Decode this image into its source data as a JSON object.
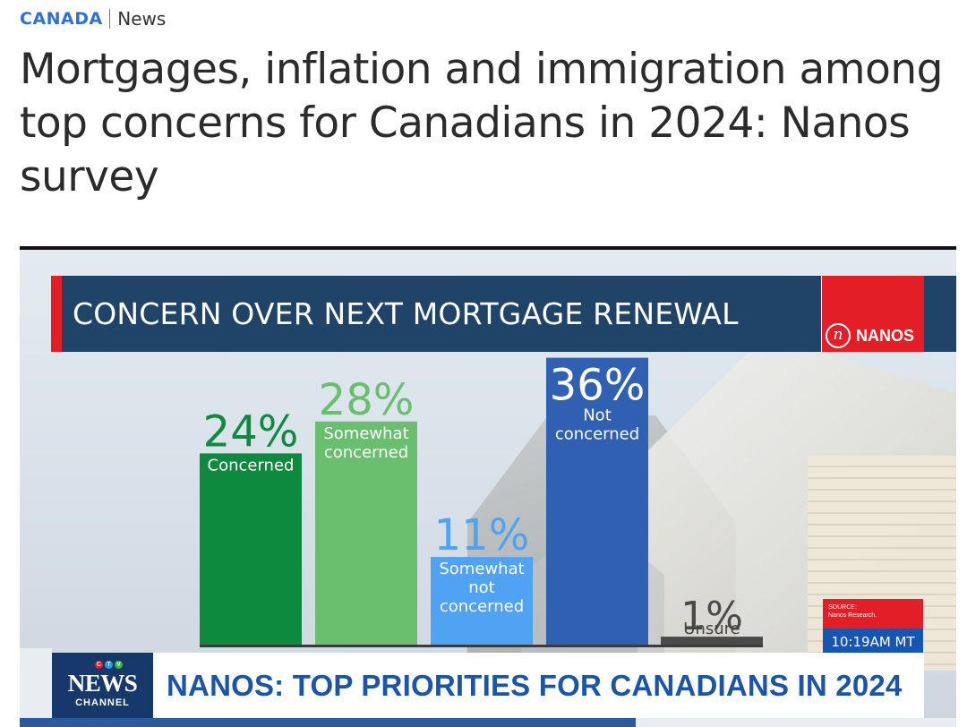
{
  "header": {
    "brand": "CANADA",
    "section": "News"
  },
  "article": {
    "headline": "Mortgages, inflation and immigration among top concerns for Canadians in 2024: Nanos survey"
  },
  "broadcast": {
    "banner_title": "CONCERN OVER NEXT MORTGAGE RENEWAL",
    "logo_text": "NANOS",
    "logo_mark": "n",
    "source_label": "SOURCE:",
    "source_text": "Nanos Research.",
    "time_text": "10:19AM MT",
    "ctv_letters": [
      "C",
      "T",
      "V"
    ],
    "network": "NEWS",
    "channel": "CHANNEL",
    "lower_third": "NANOS: TOP PRIORITIES FOR CANADIANS IN 2024"
  },
  "colors": {
    "concerned": "#0e8a3e",
    "somewhat_concerned": "#6abf6e",
    "somewhat_not_concerned": "#4fa3f2",
    "not_concerned": "#2f60b2",
    "unsure": "#4a4a4a",
    "banner": "#1f4468",
    "accent_red": "#e31e26"
  },
  "chart_data": {
    "type": "bar",
    "title": "CONCERN OVER NEXT MORTGAGE RENEWAL",
    "categories": [
      "Concerned",
      "Somewhat concerned",
      "Somewhat not concerned",
      "Not concerned",
      "Unsure"
    ],
    "category_lines": [
      [
        "Concerned"
      ],
      [
        "Somewhat",
        "concerned"
      ],
      [
        "Somewhat",
        "not",
        "concerned"
      ],
      [
        "Not",
        "concerned"
      ],
      [
        "Unsure"
      ]
    ],
    "values": [
      24,
      28,
      11,
      36,
      1
    ],
    "value_labels": [
      "24%",
      "28%",
      "11%",
      "36%",
      "1%"
    ],
    "unit": "%",
    "grid": false,
    "legend": "none"
  }
}
